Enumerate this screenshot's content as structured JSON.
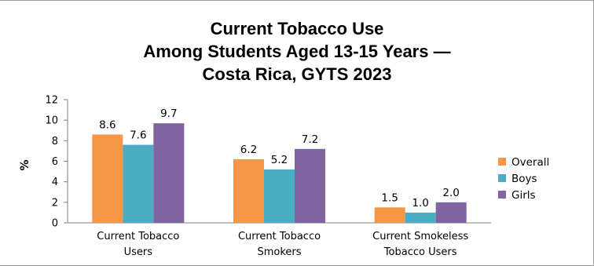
{
  "chart_data": {
    "type": "bar",
    "title_lines": [
      "Current Tobacco Use",
      "Among Students Aged 13-15 Years —",
      "Costa Rica, GYTS 2023"
    ],
    "xlabel": "",
    "ylabel": "%",
    "ylim": [
      0,
      12
    ],
    "yticks": [
      "0",
      "2",
      "4",
      "6",
      "8",
      "10",
      "12"
    ],
    "categories": [
      [
        "Current Tobacco",
        "Users"
      ],
      [
        "Current Tobacco",
        "Smokers"
      ],
      [
        "Current Smokeless",
        "Tobacco Users"
      ]
    ],
    "series": [
      {
        "name": "Overall",
        "color": "#f79646",
        "values": [
          8.6,
          6.2,
          1.5
        ],
        "labels": [
          "8.6",
          "6.2",
          "1.5"
        ]
      },
      {
        "name": "Boys",
        "color": "#4bacc6",
        "values": [
          7.6,
          5.2,
          1.0
        ],
        "labels": [
          "7.6",
          "5.2",
          "1.0"
        ]
      },
      {
        "name": "Girls",
        "color": "#8064a2",
        "values": [
          9.7,
          7.2,
          2.0
        ],
        "labels": [
          "9.7",
          "7.2",
          "2.0"
        ]
      }
    ],
    "grid": false,
    "legend_position": "right"
  }
}
